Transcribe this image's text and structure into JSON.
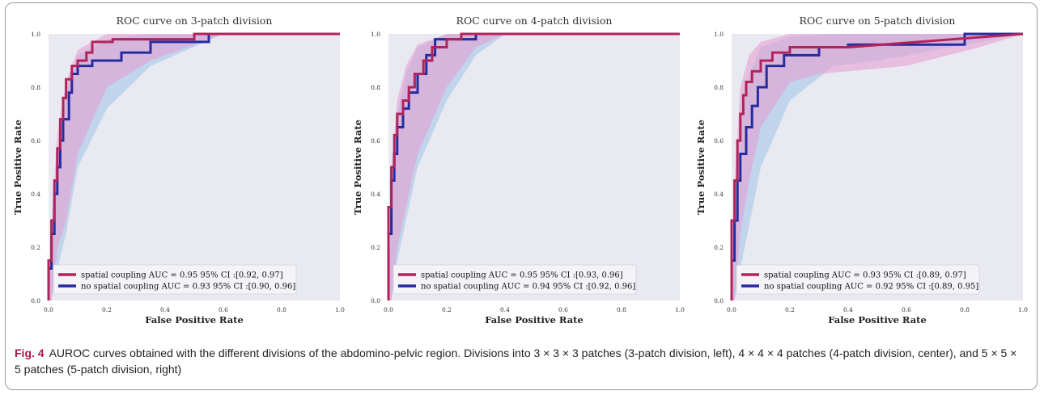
{
  "colors": {
    "spatial": "#b0245a",
    "spatial_band": "#e69ad0",
    "nospatial": "#262b9e",
    "nospatial_band": "#9fc2e6",
    "plot_bg": "#e9e9f2",
    "caption_fig": "#b0144a"
  },
  "caption": {
    "fig_label": "Fig. 4",
    "text": "AUROC curves obtained with the different divisions of the abdomino-pelvic region. Divisions into 3 × 3 × 3 patches (3-patch division, left), 4 × 4 × 4 patches (4-patch division, center), and 5 × 5 × 5 patches (5-patch division, right)"
  },
  "chart_data": [
    {
      "type": "line",
      "title": "ROC curve on 3-patch division",
      "xlabel": "False Positive Rate",
      "ylabel": "True Positive Rate",
      "xlim": [
        0,
        1
      ],
      "ylim": [
        0,
        1
      ],
      "xticks": [
        "0.0",
        "0.2",
        "0.4",
        "0.6",
        "0.8",
        "1.0"
      ],
      "yticks": [
        "0.0",
        "0.2",
        "0.4",
        "0.6",
        "0.8",
        "1.0"
      ],
      "grid": false,
      "legend_position": "lower-left",
      "series": [
        {
          "name": "spatial coupling AUC = 0.95 95% CI :[0.92, 0.97]",
          "x": [
            0.0,
            0.0,
            0.01,
            0.01,
            0.02,
            0.02,
            0.03,
            0.03,
            0.04,
            0.04,
            0.05,
            0.05,
            0.06,
            0.06,
            0.08,
            0.08,
            0.1,
            0.1,
            0.13,
            0.13,
            0.15,
            0.15,
            0.22,
            0.22,
            0.5,
            0.5,
            1.0
          ],
          "y": [
            0.0,
            0.15,
            0.15,
            0.3,
            0.3,
            0.45,
            0.45,
            0.57,
            0.57,
            0.68,
            0.68,
            0.76,
            0.76,
            0.83,
            0.83,
            0.88,
            0.88,
            0.9,
            0.9,
            0.93,
            0.93,
            0.97,
            0.97,
            0.98,
            0.98,
            1.0,
            1.0
          ],
          "band_lo": [
            0,
            0,
            0.2,
            0.3,
            0.55,
            0.8,
            0.9,
            1.0
          ],
          "band_hi": [
            0,
            0.3,
            0.62,
            0.82,
            0.94,
            1.0,
            1.0,
            1.0
          ],
          "band_x": [
            0,
            0.01,
            0.03,
            0.06,
            0.1,
            0.2,
            0.35,
            0.6
          ]
        },
        {
          "name": "no spatial coupling AUC = 0.93 95% CI :[0.90, 0.96]",
          "x": [
            0.0,
            0.0,
            0.01,
            0.01,
            0.02,
            0.02,
            0.03,
            0.03,
            0.04,
            0.04,
            0.05,
            0.05,
            0.07,
            0.07,
            0.08,
            0.08,
            0.1,
            0.1,
            0.15,
            0.15,
            0.25,
            0.25,
            0.35,
            0.35,
            0.55,
            0.55,
            1.0
          ],
          "y": [
            0.0,
            0.12,
            0.12,
            0.25,
            0.25,
            0.4,
            0.4,
            0.5,
            0.5,
            0.6,
            0.6,
            0.68,
            0.68,
            0.78,
            0.78,
            0.85,
            0.85,
            0.88,
            0.88,
            0.9,
            0.9,
            0.93,
            0.93,
            0.97,
            0.97,
            1.0,
            1.0
          ],
          "band_lo": [
            0,
            0,
            0.12,
            0.25,
            0.5,
            0.72,
            0.88,
            1.0
          ],
          "band_hi": [
            0,
            0.22,
            0.55,
            0.78,
            0.92,
            0.98,
            1.0,
            1.0
          ],
          "band_x": [
            0,
            0.01,
            0.03,
            0.06,
            0.1,
            0.2,
            0.35,
            0.6
          ]
        }
      ]
    },
    {
      "type": "line",
      "title": "ROC curve on 4-patch division",
      "xlabel": "False Positive Rate",
      "ylabel": "True Positive Rate",
      "xlim": [
        0,
        1
      ],
      "ylim": [
        0,
        1
      ],
      "xticks": [
        "0.0",
        "0.2",
        "0.4",
        "0.6",
        "0.8",
        "1.0"
      ],
      "yticks": [
        "0.0",
        "0.2",
        "0.4",
        "0.6",
        "0.8",
        "1.0"
      ],
      "grid": false,
      "legend_position": "lower-left",
      "series": [
        {
          "name": "spatial coupling AUC = 0.95 95% CI :[0.93, 0.96]",
          "x": [
            0.0,
            0.0,
            0.01,
            0.01,
            0.02,
            0.02,
            0.03,
            0.03,
            0.05,
            0.05,
            0.07,
            0.07,
            0.09,
            0.09,
            0.12,
            0.12,
            0.15,
            0.15,
            0.2,
            0.2,
            0.25,
            0.25,
            1.0
          ],
          "y": [
            0.0,
            0.35,
            0.35,
            0.5,
            0.5,
            0.62,
            0.62,
            0.7,
            0.7,
            0.75,
            0.75,
            0.8,
            0.8,
            0.85,
            0.85,
            0.9,
            0.9,
            0.95,
            0.95,
            0.98,
            0.98,
            1.0,
            1.0
          ],
          "band_lo": [
            0,
            0,
            0.2,
            0.35,
            0.55,
            0.8,
            0.95,
            1.0
          ],
          "band_hi": [
            0,
            0.5,
            0.75,
            0.88,
            0.96,
            1.0,
            1.0,
            1.0
          ],
          "band_x": [
            0,
            0.01,
            0.03,
            0.06,
            0.1,
            0.2,
            0.3,
            0.4
          ]
        },
        {
          "name": "no spatial coupling AUC = 0.94 95% CI :[0.92, 0.96]",
          "x": [
            0.0,
            0.0,
            0.01,
            0.01,
            0.02,
            0.02,
            0.03,
            0.03,
            0.05,
            0.05,
            0.07,
            0.07,
            0.1,
            0.1,
            0.13,
            0.13,
            0.16,
            0.16,
            0.3,
            0.3,
            1.0
          ],
          "y": [
            0.0,
            0.25,
            0.25,
            0.45,
            0.45,
            0.55,
            0.55,
            0.65,
            0.65,
            0.72,
            0.72,
            0.78,
            0.78,
            0.85,
            0.85,
            0.92,
            0.92,
            0.98,
            0.98,
            1.0,
            1.0
          ],
          "band_lo": [
            0,
            0,
            0.15,
            0.3,
            0.5,
            0.75,
            0.92,
            1.0
          ],
          "band_hi": [
            0,
            0.4,
            0.7,
            0.85,
            0.95,
            1.0,
            1.0,
            1.0
          ],
          "band_x": [
            0,
            0.01,
            0.03,
            0.06,
            0.1,
            0.2,
            0.3,
            0.4
          ]
        }
      ]
    },
    {
      "type": "line",
      "title": "ROC curve on 5-patch division",
      "xlabel": "False Positive Rate",
      "ylabel": "True Positive Rate",
      "xlim": [
        0,
        1
      ],
      "ylim": [
        0,
        1
      ],
      "xticks": [
        "0.0",
        "0.2",
        "0.4",
        "0.6",
        "0.8",
        "1.0"
      ],
      "yticks": [
        "0.0",
        "0.2",
        "0.4",
        "0.6",
        "0.8",
        "1.0"
      ],
      "grid": false,
      "legend_position": "lower-left",
      "series": [
        {
          "name": "spatial coupling AUC = 0.93 95% CI :[0.89, 0.97]",
          "x": [
            0.0,
            0.0,
            0.01,
            0.01,
            0.02,
            0.02,
            0.03,
            0.03,
            0.04,
            0.04,
            0.05,
            0.05,
            0.07,
            0.07,
            0.1,
            0.1,
            0.14,
            0.14,
            0.2,
            0.2,
            0.3,
            0.3,
            0.4,
            1.0
          ],
          "y": [
            0.0,
            0.3,
            0.3,
            0.45,
            0.45,
            0.6,
            0.6,
            0.7,
            0.7,
            0.77,
            0.77,
            0.82,
            0.82,
            0.86,
            0.86,
            0.9,
            0.9,
            0.93,
            0.93,
            0.95,
            0.95,
            0.95,
            0.95,
            1.0
          ],
          "band_lo": [
            0,
            0.0,
            0.25,
            0.45,
            0.65,
            0.82,
            0.85,
            0.86,
            0.88,
            0.95,
            1.0
          ],
          "band_hi": [
            0,
            0.45,
            0.8,
            0.92,
            0.97,
            1.0,
            1.0,
            1.0,
            1.0,
            1.0,
            1.0
          ],
          "band_x": [
            0,
            0.01,
            0.03,
            0.06,
            0.1,
            0.2,
            0.3,
            0.4,
            0.6,
            0.85,
            1.0
          ]
        },
        {
          "name": "no spatial coupling AUC = 0.92 95% CI :[0.89, 0.95]",
          "x": [
            0.0,
            0.0,
            0.01,
            0.01,
            0.02,
            0.02,
            0.03,
            0.03,
            0.05,
            0.05,
            0.07,
            0.07,
            0.09,
            0.09,
            0.12,
            0.12,
            0.18,
            0.18,
            0.3,
            0.3,
            0.4,
            0.4,
            0.8,
            0.8,
            1.0
          ],
          "y": [
            0.0,
            0.15,
            0.15,
            0.3,
            0.3,
            0.45,
            0.45,
            0.55,
            0.55,
            0.65,
            0.65,
            0.73,
            0.73,
            0.8,
            0.8,
            0.88,
            0.88,
            0.92,
            0.92,
            0.95,
            0.95,
            0.96,
            0.96,
            1.0,
            1.0
          ],
          "band_lo": [
            0,
            0,
            0.12,
            0.28,
            0.5,
            0.75,
            0.88,
            0.9,
            1.0
          ],
          "band_hi": [
            0,
            0.3,
            0.65,
            0.85,
            0.95,
            0.99,
            1.0,
            1.0,
            1.0
          ],
          "band_x": [
            0,
            0.01,
            0.03,
            0.06,
            0.1,
            0.2,
            0.35,
            0.5,
            1.0
          ]
        }
      ]
    }
  ]
}
